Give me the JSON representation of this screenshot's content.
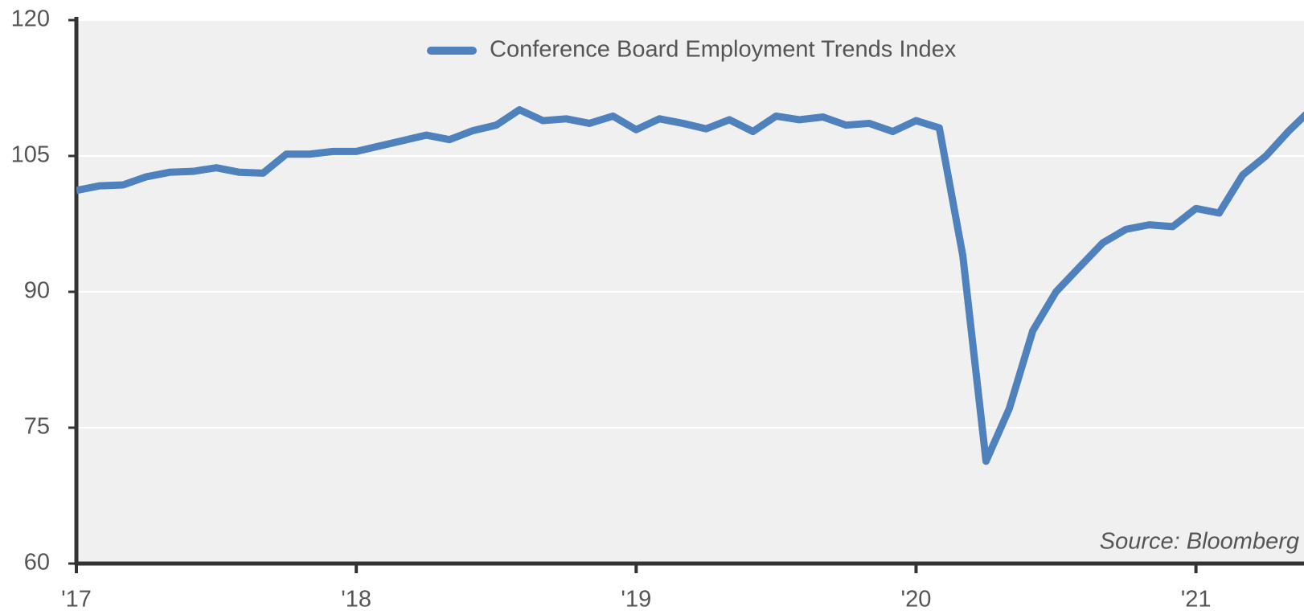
{
  "chart_data": {
    "type": "line",
    "x": [
      2017,
      2017.083,
      2017.167,
      2017.25,
      2017.333,
      2017.417,
      2017.5,
      2017.583,
      2017.667,
      2017.75,
      2017.833,
      2017.917,
      2018,
      2018.083,
      2018.167,
      2018.25,
      2018.333,
      2018.417,
      2018.5,
      2018.583,
      2018.667,
      2018.75,
      2018.833,
      2018.917,
      2019,
      2019.083,
      2019.167,
      2019.25,
      2019.333,
      2019.417,
      2019.5,
      2019.583,
      2019.667,
      2019.75,
      2019.833,
      2019.917,
      2020,
      2020.083,
      2020.167,
      2020.25,
      2020.333,
      2020.417,
      2020.5,
      2020.583,
      2020.667,
      2020.75,
      2020.833,
      2020.917,
      2021,
      2021.083,
      2021.167,
      2021.25,
      2021.333,
      2021.417
    ],
    "series": [
      {
        "name": "Conference Board Employment Trends Index",
        "color": "#4f81bd",
        "values": [
          101.2,
          101.7,
          101.8,
          102.7,
          103.2,
          103.3,
          103.7,
          103.2,
          103.1,
          105.2,
          105.2,
          105.5,
          105.5,
          106.1,
          106.7,
          107.3,
          106.8,
          107.8,
          108.4,
          110.1,
          108.9,
          109.1,
          108.6,
          109.4,
          107.9,
          109.1,
          108.6,
          108.0,
          109.0,
          107.7,
          109.4,
          109.0,
          109.3,
          108.4,
          108.6,
          107.7,
          108.9,
          108.1,
          94.0,
          71.3,
          77.1,
          85.7,
          90.0,
          92.7,
          95.4,
          96.9,
          97.4,
          97.2,
          99.2,
          98.7,
          102.9,
          105.0,
          107.8,
          110.3
        ]
      }
    ],
    "xlim": [
      2017,
      2021.386
    ],
    "xticks": [
      {
        "value": 2017,
        "label": "'17"
      },
      {
        "value": 2018,
        "label": "'18"
      },
      {
        "value": 2019,
        "label": "'19"
      },
      {
        "value": 2020,
        "label": "'20"
      },
      {
        "value": 2021,
        "label": "'21"
      }
    ],
    "ylim": [
      60,
      120
    ],
    "yticks": [
      60,
      75,
      90,
      105,
      120
    ],
    "grid": true,
    "legend": "top",
    "annotation": "Source: Bloomberg"
  }
}
